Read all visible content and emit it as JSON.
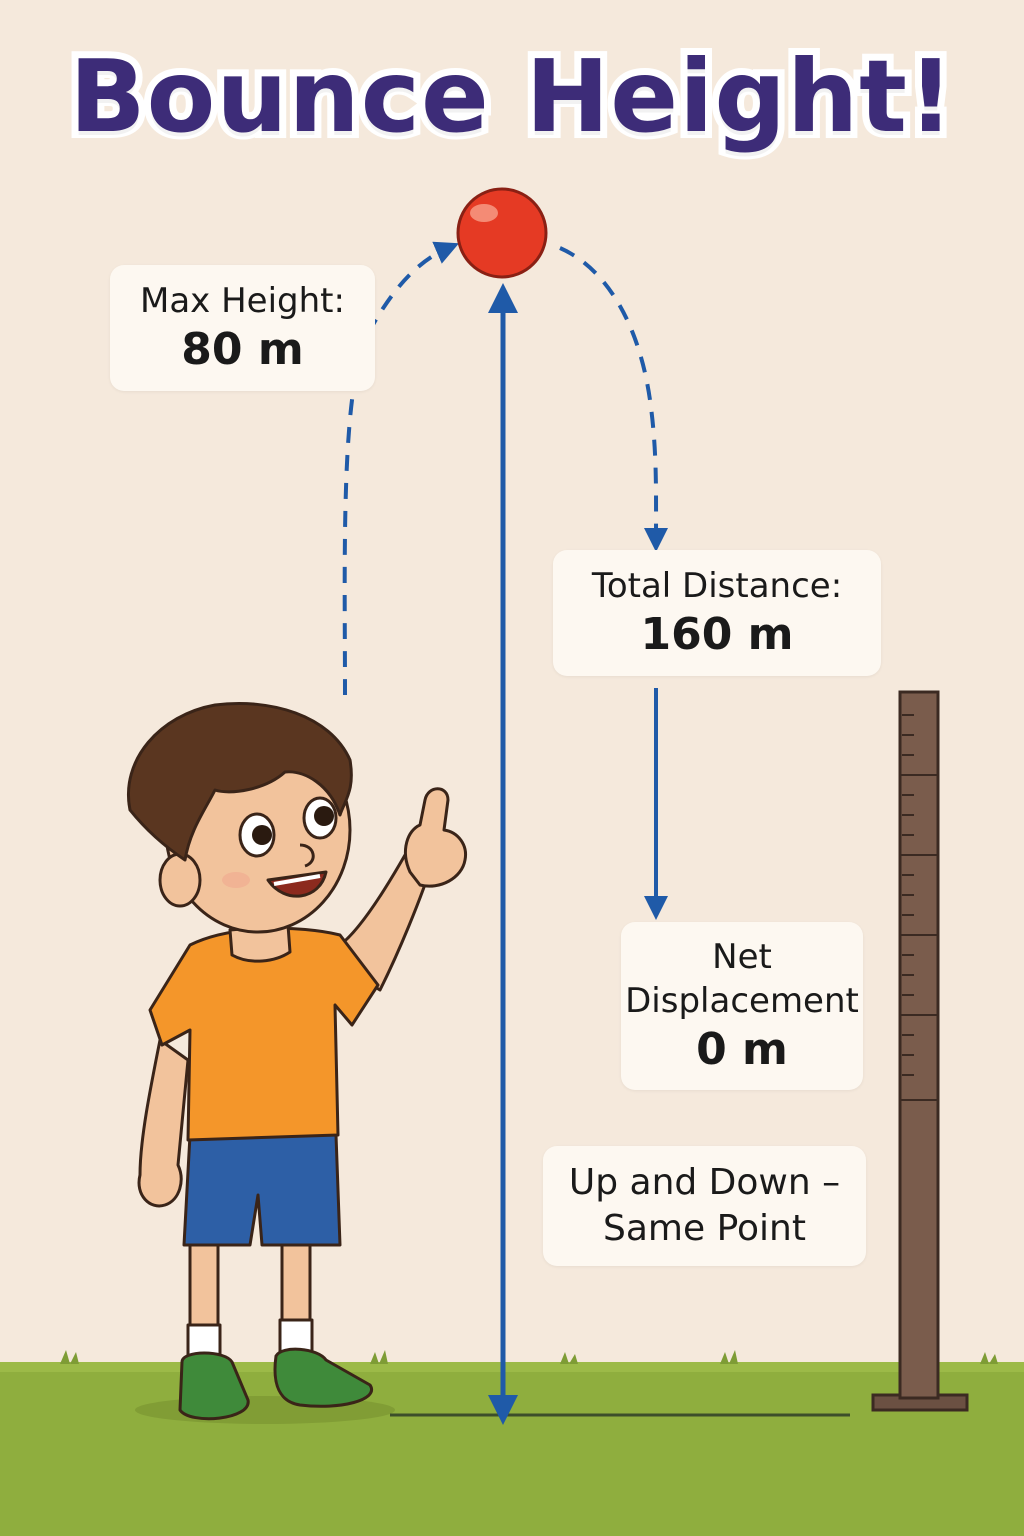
{
  "title": "Bounce Height!",
  "labels": {
    "max_height": {
      "label": "Max Height:",
      "value": "80 m"
    },
    "total_distance": {
      "label": "Total Distance:",
      "value": "160 m"
    },
    "net_displacement": {
      "label_line1": "Net",
      "label_line2": "Displacement",
      "value": "0 m"
    },
    "note": {
      "line1": "Up and Down –",
      "line2": "Same Point"
    }
  },
  "colors": {
    "background": "#f5e9dc",
    "title": "#3d2c78",
    "arrow": "#1f5aa8",
    "ball": "#e53a24",
    "grass": "#8fae3e",
    "shirt": "#f4962a",
    "shorts": "#2d5fa6",
    "shoes": "#3f8a3a",
    "pole": "#6b5042"
  },
  "icons": [
    "ball-icon",
    "boy-illustration",
    "measuring-pole-icon",
    "arrow-up-icon",
    "arrow-down-icon"
  ]
}
